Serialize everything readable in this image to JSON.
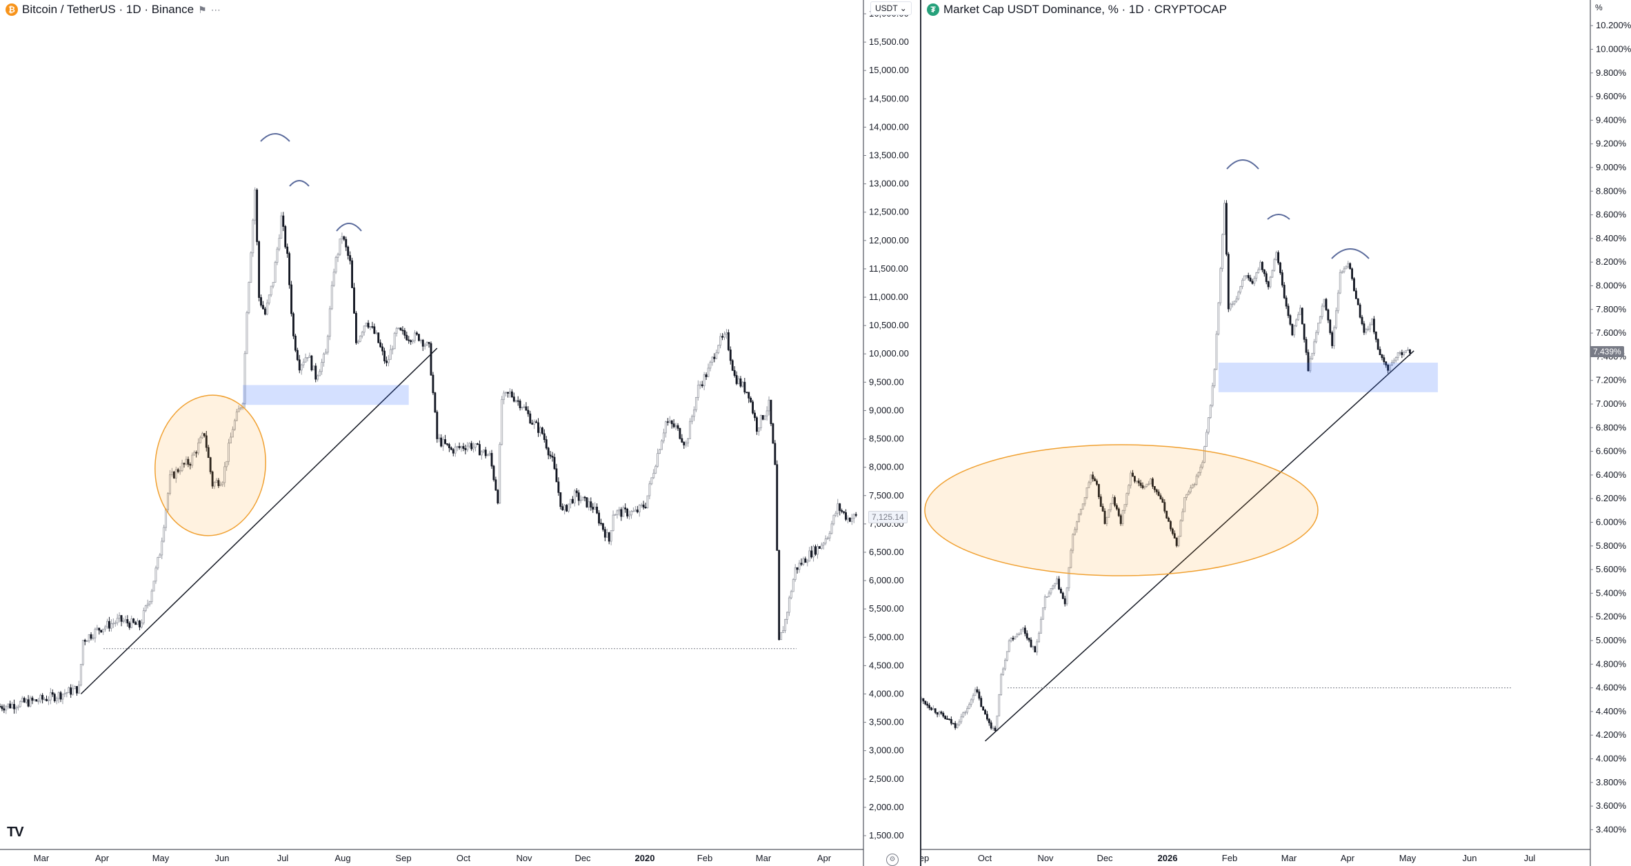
{
  "left": {
    "legend": {
      "symbol": "Bitcoin / TetherUS · 1D · Binance",
      "icon": "bitcoin-icon",
      "color": "#f7931a"
    },
    "currency": "USDT",
    "price_label": "7,125.14",
    "logo": "TV"
  },
  "right": {
    "legend": {
      "symbol": "Market Cap USDT Dominance, % · 1D · CRYPTOCAP",
      "icon": "tether-icon",
      "color": "#26a17b"
    },
    "currency": "%",
    "price_label": "7.439%"
  },
  "chart_data": [
    {
      "type": "candlestick",
      "title": "Bitcoin / TetherUS · 1D · Binance",
      "x_ticks": [
        "Mar",
        "Apr",
        "May",
        "Jun",
        "Jul",
        "Aug",
        "Sep",
        "Oct",
        "Nov",
        "Dec",
        "2020",
        "Feb",
        "Mar",
        "Apr"
      ],
      "y_ticks": [
        "16,000.00",
        "15,500.00",
        "15,000.00",
        "14,500.00",
        "14,000.00",
        "13,500.00",
        "13,000.00",
        "12,500.00",
        "12,000.00",
        "11,500.00",
        "11,000.00",
        "10,500.00",
        "10,000.00",
        "9,500.00",
        "9,000.00",
        "8,500.00",
        "8,000.00",
        "7,500.00",
        "7,000.00",
        "6,500.00",
        "6,000.00",
        "5,500.00",
        "5,000.00",
        "4,500.00",
        "4,000.00",
        "3,500.00",
        "3,000.00",
        "2,500.00",
        "2,000.00",
        "1,500.00"
      ],
      "ylim": [
        1500,
        16000
      ],
      "last_price": 7125.14,
      "path_points": [
        [
          "Feb 20",
          3780
        ],
        [
          "Feb 25",
          3800
        ],
        [
          "Mar 1",
          3830
        ],
        [
          "Mar 10",
          3880
        ],
        [
          "Mar 20",
          3970
        ],
        [
          "Mar 31",
          4100
        ],
        [
          "Apr 2",
          4950
        ],
        [
          "Apr 10",
          5150
        ],
        [
          "Apr 20",
          5300
        ],
        [
          "Apr 30",
          5200
        ],
        [
          "May 5",
          5700
        ],
        [
          "May 10",
          6500
        ],
        [
          "May 15",
          7800
        ],
        [
          "May 20",
          8000
        ],
        [
          "May 25",
          8100
        ],
        [
          "Jun 1",
          8600
        ],
        [
          "Jun 5",
          7700
        ],
        [
          "Jun 10",
          7800
        ],
        [
          "Jun 15",
          8700
        ],
        [
          "Jun 20",
          9200
        ],
        [
          "Jun 22",
          10800
        ],
        [
          "Jun 26",
          12900
        ],
        [
          "Jun 28",
          11000
        ],
        [
          "Jul 1",
          10700
        ],
        [
          "Jul 5",
          11300
        ],
        [
          "Jul 9",
          12400
        ],
        [
          "Jul 12",
          11700
        ],
        [
          "Jul 15",
          10300
        ],
        [
          "Jul 18",
          9800
        ],
        [
          "Jul 22",
          10000
        ],
        [
          "Jul 26",
          9600
        ],
        [
          "Jul 31",
          10000
        ],
        [
          "Aug 4",
          11500
        ],
        [
          "Aug 8",
          12100
        ],
        [
          "Aug 12",
          11600
        ],
        [
          "Aug 15",
          10200
        ],
        [
          "Aug 20",
          10600
        ],
        [
          "Aug 25",
          10300
        ],
        [
          "Aug 30",
          9800
        ],
        [
          "Sep 4",
          10400
        ],
        [
          "Sep 10",
          10300
        ],
        [
          "Sep 15",
          10300
        ],
        [
          "Sep 20",
          10100
        ],
        [
          "Sep 24",
          8500
        ],
        [
          "Oct 1",
          8300
        ],
        [
          "Oct 10",
          8400
        ],
        [
          "Oct 20",
          8200
        ],
        [
          "Oct 24",
          7450
        ],
        [
          "Oct 26",
          9200
        ],
        [
          "Oct 30",
          9300
        ],
        [
          "Nov 5",
          9100
        ],
        [
          "Nov 10",
          8800
        ],
        [
          "Nov 15",
          8600
        ],
        [
          "Nov 20",
          8100
        ],
        [
          "Nov 25",
          7200
        ],
        [
          "Dec 1",
          7500
        ],
        [
          "Dec 10",
          7300
        ],
        [
          "Dec 18",
          6700
        ],
        [
          "Dec 20",
          7200
        ],
        [
          "Dec 31",
          7200
        ],
        [
          "Jan 5",
          7350
        ],
        [
          "Jan 10",
          8100
        ],
        [
          "Jan 15",
          8800
        ],
        [
          "Jan 20",
          8700
        ],
        [
          "Jan 25",
          8400
        ],
        [
          "Jan 31",
          9400
        ],
        [
          "Feb 5",
          9700
        ],
        [
          "Feb 10",
          10200
        ],
        [
          "Feb 14",
          10300
        ],
        [
          "Feb 18",
          9600
        ],
        [
          "Feb 25",
          9300
        ],
        [
          "Mar 1",
          8700
        ],
        [
          "Mar 7",
          9100
        ],
        [
          "Mar 10",
          8000
        ],
        [
          "Mar 12",
          4900
        ],
        [
          "Mar 15",
          5300
        ],
        [
          "Mar 20",
          6200
        ],
        [
          "Mar 28",
          6500
        ],
        [
          "Apr 1",
          6600
        ],
        [
          "Apr 5",
          6800
        ],
        [
          "Apr 10",
          7300
        ],
        [
          "Apr 15",
          7100
        ],
        [
          "Apr 19",
          7125
        ]
      ],
      "annotations": {
        "trendline": [
          [
            "Apr 1",
            4000
          ],
          [
            "Sep 24",
            10100
          ]
        ],
        "support_zone": [
          [
            "Jun 20",
            9450
          ],
          [
            "Sep 10",
            9100
          ]
        ],
        "dotted_level": 4800,
        "ellipse": "around May–Jun consolidation",
        "arcs": [
          "Jun 27 top",
          "Jul 10 top",
          "Aug 6 top"
        ]
      }
    },
    {
      "type": "candlestick",
      "title": "Market Cap USDT Dominance, % · 1D · CRYPTOCAP",
      "x_ticks": [
        "ep",
        "Oct",
        "Nov",
        "Dec",
        "2026",
        "Feb",
        "Mar",
        "Apr",
        "May",
        "Jun",
        "Jul"
      ],
      "y_ticks": [
        "10.200%",
        "10.000%",
        "9.800%",
        "9.600%",
        "9.400%",
        "9.200%",
        "9.000%",
        "8.800%",
        "8.600%",
        "8.400%",
        "8.200%",
        "8.000%",
        "7.800%",
        "7.600%",
        "7.400%",
        "7.200%",
        "7.000%",
        "6.800%",
        "6.600%",
        "6.400%",
        "6.200%",
        "6.000%",
        "5.800%",
        "5.600%",
        "5.400%",
        "5.200%",
        "5.000%",
        "4.800%",
        "4.600%",
        "4.400%",
        "4.200%",
        "4.000%",
        "3.800%",
        "3.600%",
        "3.400%"
      ],
      "ylim": [
        3.35,
        10.3
      ],
      "last_price": 7.439,
      "path_points": [
        [
          "Sep 1",
          4.5
        ],
        [
          "Sep 10",
          4.38
        ],
        [
          "Sep 18",
          4.28
        ],
        [
          "Sep 25",
          4.45
        ],
        [
          "Sep 28",
          4.6
        ],
        [
          "Oct 2",
          4.4
        ],
        [
          "Oct 8",
          4.22
        ],
        [
          "Oct 11",
          4.7
        ],
        [
          "Oct 15",
          5.0
        ],
        [
          "Oct 22",
          5.1
        ],
        [
          "Oct 28",
          4.9
        ],
        [
          "Nov 2",
          5.35
        ],
        [
          "Nov 8",
          5.5
        ],
        [
          "Nov 12",
          5.3
        ],
        [
          "Nov 16",
          5.9
        ],
        [
          "Nov 20",
          6.1
        ],
        [
          "Nov 25",
          6.4
        ],
        [
          "Nov 28",
          6.3
        ],
        [
          "Dec 2",
          6.0
        ],
        [
          "Dec 6",
          6.2
        ],
        [
          "Dec 10",
          6.0
        ],
        [
          "Dec 15",
          6.4
        ],
        [
          "Dec 20",
          6.3
        ],
        [
          "Dec 25",
          6.35
        ],
        [
          "Dec 30",
          6.2
        ],
        [
          "Jan 3",
          6.0
        ],
        [
          "Jan 7",
          5.8
        ],
        [
          "Jan 11",
          6.2
        ],
        [
          "Jan 15",
          6.3
        ],
        [
          "Jan 20",
          6.5
        ],
        [
          "Jan 24",
          7.0
        ],
        [
          "Jan 26",
          7.3
        ],
        [
          "Jan 31",
          8.7
        ],
        [
          "Feb 2",
          7.8
        ],
        [
          "Feb 6",
          7.9
        ],
        [
          "Feb 10",
          8.1
        ],
        [
          "Feb 14",
          8.0
        ],
        [
          "Feb 18",
          8.2
        ],
        [
          "Feb 22",
          8.0
        ],
        [
          "Feb 26",
          8.3
        ],
        [
          "Mar 2",
          7.9
        ],
        [
          "Mar 6",
          7.6
        ],
        [
          "Mar 10",
          7.8
        ],
        [
          "Mar 14",
          7.3
        ],
        [
          "Mar 18",
          7.6
        ],
        [
          "Mar 22",
          7.9
        ],
        [
          "Mar 26",
          7.5
        ],
        [
          "Mar 30",
          8.1
        ],
        [
          "Apr 3",
          8.2
        ],
        [
          "Apr 7",
          7.9
        ],
        [
          "Apr 11",
          7.6
        ],
        [
          "Apr 15",
          7.7
        ],
        [
          "Apr 19",
          7.4
        ],
        [
          "Apr 23",
          7.3
        ],
        [
          "Apr 27",
          7.4
        ],
        [
          "May 1",
          7.45
        ],
        [
          "May 4",
          7.439
        ]
      ],
      "annotations": {
        "trendline": [
          [
            "Oct 3",
            4.15
          ],
          [
            "May 6",
            7.45
          ]
        ],
        "support_zone": [
          [
            "Jan 28",
            7.35
          ],
          [
            "May 18",
            7.1
          ]
        ],
        "dotted_level": 4.6,
        "ellipse": "around Nov–Jan consolidation",
        "arcs": [
          "Feb 1 top",
          "Feb 22 top",
          "Apr 5 top"
        ]
      }
    }
  ]
}
